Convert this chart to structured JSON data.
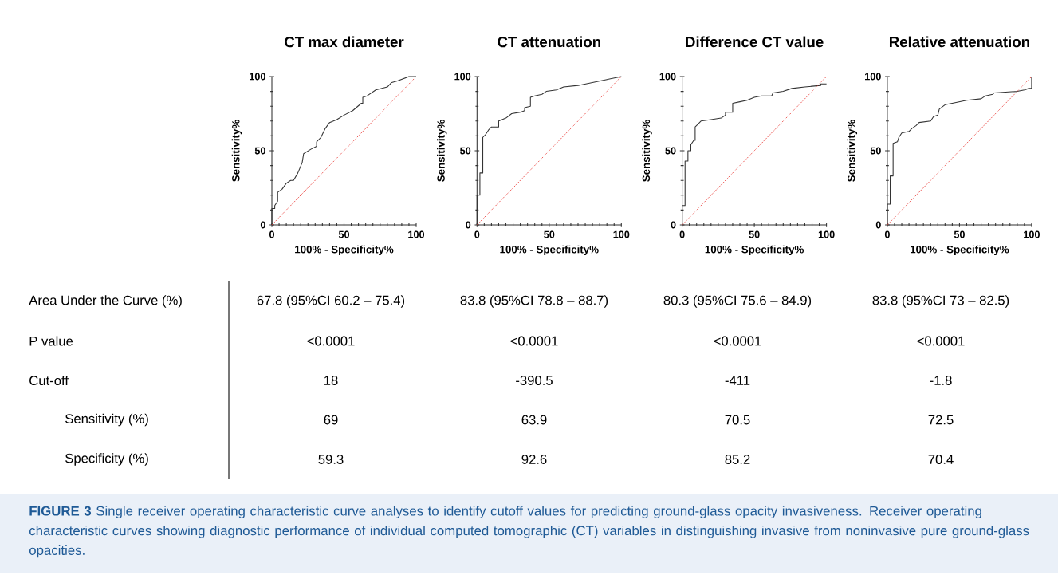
{
  "chart_data": [
    {
      "type": "line",
      "title": "CT max diameter",
      "xlabel": "100% - Specificity%",
      "ylabel": "Sensitivity%",
      "xlim": [
        0,
        100
      ],
      "ylim": [
        0,
        100
      ],
      "xticks": [
        0,
        50,
        100
      ],
      "yticks": [
        0,
        50,
        100
      ],
      "series": [
        {
          "color": "#333333",
          "line_style": "solid",
          "x": [
            0,
            0,
            2,
            2,
            4,
            4,
            7,
            10,
            13,
            15,
            18,
            21,
            22,
            27,
            31,
            31,
            34,
            37,
            40,
            45,
            50,
            56,
            62,
            63,
            63,
            66,
            72,
            80,
            83,
            87,
            95,
            100
          ],
          "values": [
            0,
            11,
            11,
            13,
            16,
            22,
            24,
            28,
            30,
            30,
            35,
            42,
            48,
            51,
            53,
            56,
            59,
            65,
            69,
            71,
            74,
            77,
            82,
            82,
            86,
            87,
            91,
            93,
            96,
            97,
            100,
            100
          ]
        },
        {
          "color": "#e8322d",
          "line_style": "dotted",
          "x": [
            0,
            100
          ],
          "values": [
            0,
            100
          ]
        }
      ]
    },
    {
      "type": "line",
      "title": "CT attenuation",
      "xlabel": "100% - Specificity%",
      "ylabel": "Sensitivity%",
      "xlim": [
        0,
        100
      ],
      "ylim": [
        0,
        100
      ],
      "xticks": [
        0,
        50,
        100
      ],
      "yticks": [
        0,
        50,
        100
      ],
      "series": [
        {
          "color": "#333333",
          "line_style": "solid",
          "x": [
            0,
            0,
            2,
            2,
            4,
            4,
            6,
            8,
            10,
            15,
            15,
            20,
            24,
            30,
            33,
            33,
            37,
            37,
            40,
            45,
            48,
            55,
            60,
            70,
            80,
            90,
            100
          ],
          "values": [
            0,
            20,
            20,
            35,
            35,
            59,
            61,
            64,
            66,
            66,
            70,
            72,
            75,
            76,
            77,
            79,
            80,
            86,
            87,
            88,
            90,
            91,
            93,
            94,
            96,
            98,
            100
          ]
        },
        {
          "color": "#e8322d",
          "line_style": "dotted",
          "x": [
            0,
            100
          ],
          "values": [
            0,
            100
          ]
        }
      ]
    },
    {
      "type": "line",
      "title": "Difference CT value",
      "xlabel": "100% - Specificity%",
      "ylabel": "Sensitivity%",
      "xlim": [
        0,
        100
      ],
      "ylim": [
        0,
        100
      ],
      "xticks": [
        0,
        50,
        100
      ],
      "yticks": [
        0,
        50,
        100
      ],
      "series": [
        {
          "color": "#333333",
          "line_style": "solid",
          "x": [
            0,
            0,
            2,
            2,
            4,
            4,
            6,
            6,
            8,
            9,
            9,
            11,
            13,
            20,
            27,
            30,
            30,
            35,
            35,
            40,
            45,
            50,
            55,
            62,
            63,
            70,
            76,
            85,
            96,
            96,
            100
          ],
          "values": [
            0,
            13,
            13,
            43,
            43,
            50,
            50,
            54,
            57,
            57,
            66,
            68,
            70,
            71,
            72,
            74,
            76,
            76,
            82,
            83,
            84,
            86,
            87,
            87,
            89,
            90,
            92,
            93,
            94,
            95,
            95
          ]
        },
        {
          "color": "#e8322d",
          "line_style": "dotted",
          "x": [
            0,
            100
          ],
          "values": [
            0,
            100
          ]
        }
      ]
    },
    {
      "type": "line",
      "title": "Relative attenuation",
      "xlabel": "100% - Specificity%",
      "ylabel": "Sensitivity%",
      "xlim": [
        0,
        100
      ],
      "ylim": [
        0,
        100
      ],
      "xticks": [
        0,
        50,
        100
      ],
      "yticks": [
        0,
        50,
        100
      ],
      "series": [
        {
          "color": "#333333",
          "line_style": "solid",
          "x": [
            0,
            0,
            2,
            2,
            4,
            4,
            7,
            8,
            10,
            15,
            17,
            20,
            22,
            30,
            32,
            35,
            36,
            40,
            45,
            55,
            65,
            68,
            73,
            74,
            90,
            95,
            98,
            100,
            100
          ],
          "values": [
            0,
            14,
            14,
            33,
            33,
            55,
            56,
            59,
            62,
            63,
            65,
            67,
            69,
            70,
            73,
            74,
            78,
            81,
            82,
            84,
            85,
            87,
            88,
            89,
            90,
            91,
            92,
            92,
            100
          ]
        },
        {
          "color": "#e8322d",
          "line_style": "dotted",
          "x": [
            0,
            100
          ],
          "values": [
            0,
            100
          ]
        }
      ]
    },
    {
      "type": "other",
      "annotations": [
        "Area Under the Curve (%)",
        "P value",
        "Cut-off",
        "Sensitivity (%)",
        "Specificity (%)",
        "67.8 (95%CI 60.2 – 75.4)",
        "83.8 (95%CI 78.8 – 88.7)",
        "80.3 (95%CI 75.6 – 84.9)",
        "83.8 (95%CI 73 – 82.5)",
        "<0.0001",
        "<0.0001",
        "<0.0001",
        "<0.0001",
        "18",
        "-390.5",
        "-411",
        "-1.8",
        "69",
        "63.9",
        "70.5",
        "72.5",
        "59.3",
        "92.6",
        "85.2",
        "70.4",
        "**FIGURE 3** Single receiver operating characteristic curve analyses to identify cutoff values for predicting ground-glass opacity invasiveness. Receiver operating characteristic curves showing diagnostic performance of individual computed tomographic (CT) variables in distinguishing invasive from noninvasive pure ground-glass opacities."
      ]
    }
  ]
}
